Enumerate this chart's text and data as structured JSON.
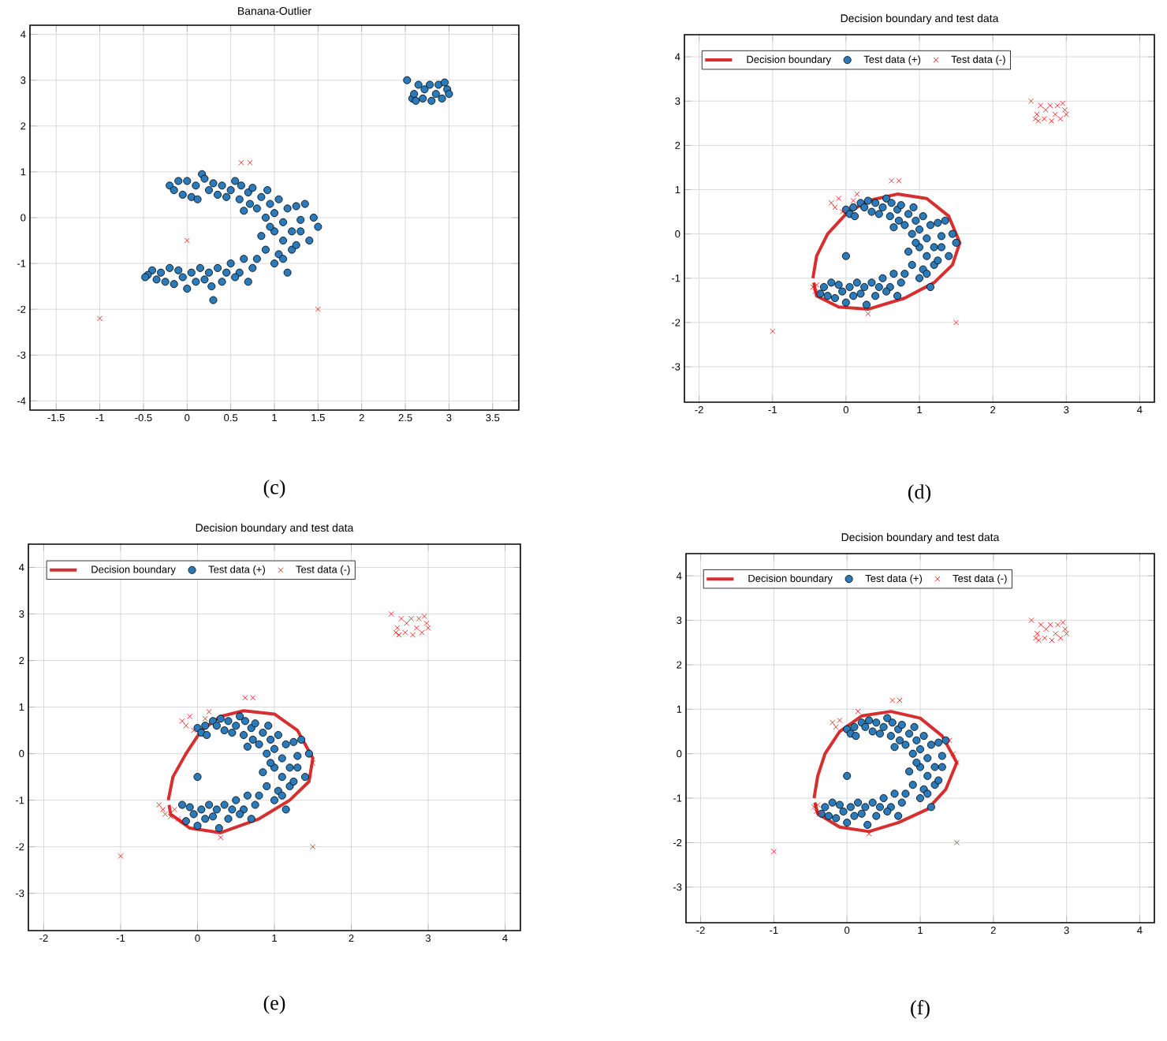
{
  "chart_data": [
    {
      "type": "scatter",
      "title": "Banana-Outlier",
      "annotations": [
        "(c)"
      ],
      "xlim": [
        -1.8,
        3.8
      ],
      "ylim": [
        -4.2,
        4.2
      ],
      "xticks": [
        -1.5,
        -1,
        -0.5,
        0,
        0.5,
        1,
        1.5,
        2,
        2.5,
        3,
        3.5
      ],
      "yticks": [
        -4,
        -3,
        -2,
        -1,
        0,
        1,
        2,
        3,
        4
      ],
      "grid": true,
      "legend": false,
      "series": [
        {
          "color": "#2b7bba",
          "marker": "circle",
          "x": [
            -0.2,
            -0.15,
            -0.1,
            -0.05,
            0,
            0.05,
            0.1,
            0.12,
            0.17,
            0.2,
            0.25,
            0.3,
            0.35,
            0.4,
            0.45,
            0.5,
            0.55,
            0.6,
            0.62,
            0.65,
            0.7,
            0.72,
            0.75,
            0.8,
            0.85,
            0.9,
            0.92,
            0.95,
            1.0,
            1.05,
            1.1,
            1.15,
            1.2,
            1.25,
            1.3,
            1.35,
            1.4,
            1.45,
            1.5,
            1.0,
            0.95,
            1.1,
            1.2,
            1.05,
            1.15,
            0.9,
            0.8,
            0.75,
            0.7,
            0.65,
            0.6,
            0.55,
            0.5,
            0.45,
            0.4,
            0.35,
            0.3,
            0.28,
            0.25,
            0.2,
            0.15,
            0.1,
            0.05,
            0,
            -0.05,
            -0.1,
            -0.15,
            -0.2,
            -0.25,
            -0.3,
            -0.35,
            -0.4,
            -0.45,
            -0.48,
            1.0,
            1.1,
            0.85,
            1.25,
            1.3,
            2.52,
            2.58,
            2.6,
            2.62,
            2.65,
            2.7,
            2.72,
            2.78,
            2.8,
            2.85,
            2.88,
            2.92,
            2.95,
            2.98,
            3.0
          ],
          "values": [
            0.7,
            0.6,
            0.8,
            0.5,
            0.8,
            0.45,
            0.7,
            0.4,
            0.95,
            0.85,
            0.6,
            0.75,
            0.5,
            0.7,
            0.45,
            0.6,
            0.8,
            0.4,
            0.7,
            0.15,
            0.55,
            0.3,
            0.65,
            0.2,
            0.45,
            0.0,
            0.6,
            0.3,
            0.1,
            0.4,
            -0.1,
            0.2,
            -0.3,
            0.25,
            -0.05,
            0.3,
            -0.5,
            0.0,
            -0.2,
            -0.3,
            -0.2,
            -0.5,
            -0.7,
            -0.8,
            -1.2,
            -0.7,
            -0.9,
            -1.1,
            -1.4,
            -0.9,
            -1.2,
            -1.3,
            -1.0,
            -1.2,
            -1.4,
            -1.1,
            -1.8,
            -1.5,
            -1.2,
            -1.35,
            -1.1,
            -1.4,
            -1.2,
            -1.55,
            -1.3,
            -1.15,
            -1.45,
            -1.1,
            -1.4,
            -1.2,
            -1.35,
            -1.15,
            -1.25,
            -1.3,
            -1.0,
            -0.9,
            -0.4,
            -0.6,
            -0.3,
            3.0,
            2.6,
            2.7,
            2.55,
            2.9,
            2.6,
            2.8,
            2.9,
            2.55,
            2.7,
            2.9,
            2.6,
            2.95,
            2.8,
            2.7
          ]
        },
        {
          "color": "#ff0000",
          "marker": "cross",
          "x": [
            0.62,
            0.72,
            0,
            -1,
            1.5
          ],
          "values": [
            1.2,
            1.2,
            -0.5,
            -2.2,
            -2
          ]
        }
      ]
    },
    {
      "type": "scatter",
      "title": "Decision boundary and test data",
      "annotations": [
        "(d)"
      ],
      "xlim": [
        -2.2,
        4.2
      ],
      "ylim": [
        -3.8,
        4.5
      ],
      "xticks": [
        -2,
        -1,
        0,
        1,
        2,
        3,
        4
      ],
      "yticks": [
        -3,
        -2,
        -1,
        0,
        1,
        2,
        3,
        4
      ],
      "grid": true,
      "legend": "top left",
      "series": [
        {
          "type": "line",
          "name": "Decision boundary",
          "color": "#d62f2f",
          "x": [
            -0.45,
            -0.4,
            -0.25,
            0,
            0.3,
            0.7,
            1.1,
            1.4,
            1.55,
            1.45,
            1.2,
            0.8,
            0.3,
            -0.1,
            -0.4,
            -0.44
          ],
          "values": [
            -1.0,
            -0.5,
            0,
            0.45,
            0.75,
            0.9,
            0.8,
            0.4,
            -0.2,
            -0.7,
            -1.1,
            -1.45,
            -1.7,
            -1.65,
            -1.4,
            -1.1
          ]
        },
        {
          "type": "scatter",
          "name": "Test data (+)",
          "color": "#2b7bba",
          "marker": "circle",
          "x": [
            0,
            0.05,
            0.1,
            0.12,
            0.2,
            0.25,
            0.3,
            0.35,
            0.4,
            0.45,
            0.5,
            0.55,
            0.6,
            0.62,
            0.65,
            0.7,
            0.72,
            0.75,
            0.8,
            0.85,
            0.9,
            0.92,
            0.95,
            1.0,
            1.05,
            1.1,
            1.15,
            1.2,
            1.25,
            1.3,
            1.35,
            1.4,
            1.45,
            1.5,
            1.0,
            0.95,
            1.1,
            1.2,
            1.05,
            1.15,
            0.9,
            0.8,
            0.75,
            0.7,
            0.65,
            0.6,
            0.55,
            0.5,
            0.45,
            0.4,
            0.35,
            0.28,
            0.25,
            0.2,
            0.15,
            0.1,
            0.05,
            0,
            -0.05,
            -0.1,
            -0.15,
            -0.2,
            -0.25,
            -0.3,
            -0.35,
            1.0,
            1.1,
            0.85,
            1.25,
            1.3,
            0
          ],
          "values": [
            0.55,
            0.45,
            0.6,
            0.4,
            0.7,
            0.6,
            0.75,
            0.5,
            0.7,
            0.45,
            0.6,
            0.8,
            0.4,
            0.7,
            0.15,
            0.55,
            0.3,
            0.65,
            0.2,
            0.45,
            0.0,
            0.6,
            0.3,
            0.1,
            0.4,
            -0.1,
            0.2,
            -0.3,
            0.25,
            -0.05,
            0.3,
            -0.5,
            0.0,
            -0.2,
            -0.3,
            -0.2,
            -0.5,
            -0.7,
            -0.8,
            -1.2,
            -0.7,
            -0.9,
            -1.1,
            -1.4,
            -0.9,
            -1.2,
            -1.3,
            -1.0,
            -1.2,
            -1.4,
            -1.1,
            -1.6,
            -1.2,
            -1.35,
            -1.1,
            -1.4,
            -1.2,
            -1.55,
            -1.3,
            -1.15,
            -1.45,
            -1.1,
            -1.4,
            -1.2,
            -1.35,
            -1.0,
            -0.9,
            -0.4,
            -0.6,
            -0.3,
            -0.5
          ]
        },
        {
          "type": "scatter",
          "name": "Test data (-)",
          "color": "#ff0000",
          "marker": "cross",
          "x": [
            0.62,
            0.72,
            -1,
            1.5,
            0.3,
            -0.2,
            -0.15,
            -0.1,
            -0.05,
            0.1,
            0.15,
            -0.45,
            -0.42,
            -0.4,
            -0.38,
            2.52,
            2.58,
            2.6,
            2.62,
            2.65,
            2.7,
            2.72,
            2.78,
            2.8,
            2.85,
            2.88,
            2.92,
            2.95,
            2.98,
            3.0
          ],
          "values": [
            1.2,
            1.2,
            -2.2,
            -2,
            -1.8,
            0.7,
            0.6,
            0.8,
            0.5,
            0.75,
            0.9,
            -1.2,
            -1.3,
            -1.15,
            -1.35,
            3.0,
            2.6,
            2.7,
            2.55,
            2.9,
            2.6,
            2.8,
            2.9,
            2.55,
            2.7,
            2.9,
            2.6,
            2.95,
            2.8,
            2.7
          ]
        }
      ]
    },
    {
      "type": "scatter",
      "title": "Decision boundary and test data",
      "annotations": [
        "(e)"
      ],
      "xlim": [
        -2.2,
        4.2
      ],
      "ylim": [
        -3.8,
        4.5
      ],
      "xticks": [
        -2,
        -1,
        0,
        1,
        2,
        3,
        4
      ],
      "yticks": [
        -3,
        -2,
        -1,
        0,
        1,
        2,
        3,
        4
      ],
      "grid": true,
      "legend": "top left",
      "series": [
        {
          "type": "line",
          "name": "Decision boundary",
          "color": "#d62f2f",
          "x": [
            -0.38,
            -0.32,
            -0.15,
            0.05,
            0.3,
            0.6,
            1.0,
            1.3,
            1.5,
            1.45,
            1.2,
            0.8,
            0.3,
            -0.1,
            -0.35,
            -0.37
          ],
          "values": [
            -1.0,
            -0.5,
            0,
            0.5,
            0.8,
            0.92,
            0.85,
            0.5,
            -0.1,
            -0.6,
            -1.0,
            -1.4,
            -1.7,
            -1.6,
            -1.3,
            -1.1
          ]
        },
        {
          "type": "scatter",
          "name": "Test data (+)",
          "color": "#2b7bba",
          "marker": "circle",
          "x": [
            0,
            0.05,
            0.1,
            0.12,
            0.2,
            0.25,
            0.3,
            0.35,
            0.4,
            0.45,
            0.5,
            0.55,
            0.6,
            0.62,
            0.65,
            0.7,
            0.72,
            0.75,
            0.8,
            0.85,
            0.9,
            0.92,
            0.95,
            1.0,
            1.05,
            1.1,
            1.15,
            1.2,
            1.25,
            1.3,
            1.35,
            1.4,
            1.45,
            1.0,
            0.95,
            1.1,
            1.2,
            1.05,
            1.15,
            0.9,
            0.8,
            0.75,
            0.7,
            0.65,
            0.6,
            0.55,
            0.5,
            0.45,
            0.4,
            0.35,
            0.28,
            0.25,
            0.2,
            0.15,
            0.1,
            0.05,
            0,
            -0.05,
            -0.1,
            -0.15,
            -0.2,
            1.0,
            1.1,
            0.85,
            1.25,
            1.3,
            0
          ],
          "values": [
            0.55,
            0.45,
            0.6,
            0.4,
            0.7,
            0.6,
            0.75,
            0.5,
            0.7,
            0.45,
            0.6,
            0.8,
            0.4,
            0.7,
            0.15,
            0.55,
            0.3,
            0.65,
            0.2,
            0.45,
            0.0,
            0.6,
            0.3,
            0.1,
            0.4,
            -0.1,
            0.2,
            -0.3,
            0.25,
            -0.05,
            0.3,
            -0.5,
            0.0,
            -0.3,
            -0.2,
            -0.5,
            -0.7,
            -0.8,
            -1.2,
            -0.7,
            -0.9,
            -1.1,
            -1.4,
            -0.9,
            -1.2,
            -1.3,
            -1.0,
            -1.2,
            -1.4,
            -1.1,
            -1.6,
            -1.2,
            -1.35,
            -1.1,
            -1.4,
            -1.2,
            -1.55,
            -1.3,
            -1.15,
            -1.45,
            -1.1,
            -1.0,
            -0.9,
            -0.4,
            -0.6,
            -0.3,
            -0.5
          ]
        },
        {
          "type": "scatter",
          "name": "Test data (-)",
          "color": "#ff0000",
          "marker": "cross",
          "x": [
            0.62,
            0.72,
            -1,
            1.5,
            1.5,
            0.3,
            -0.2,
            -0.15,
            -0.1,
            -0.05,
            0.1,
            0.15,
            -0.45,
            -0.42,
            -0.5,
            -0.35,
            -0.3,
            -0.25,
            -0.2,
            2.52,
            2.58,
            2.6,
            2.62,
            2.65,
            2.7,
            2.72,
            2.78,
            2.8,
            2.85,
            2.88,
            2.92,
            2.95,
            2.98,
            3.0
          ],
          "values": [
            1.2,
            1.2,
            -2.2,
            -2,
            -0.2,
            -1.8,
            0.7,
            0.6,
            0.8,
            0.5,
            0.75,
            0.9,
            -1.2,
            -1.3,
            -1.1,
            -1.35,
            -1.2,
            -1.4,
            -1.45,
            3.0,
            2.6,
            2.7,
            2.55,
            2.9,
            2.6,
            2.8,
            2.9,
            2.55,
            2.7,
            2.9,
            2.6,
            2.95,
            2.8,
            2.7
          ]
        }
      ]
    },
    {
      "type": "scatter",
      "title": "Decision boundary and test data",
      "annotations": [
        "(f)"
      ],
      "xlim": [
        -2.2,
        4.2
      ],
      "ylim": [
        -3.8,
        4.5
      ],
      "xticks": [
        -2,
        -1,
        0,
        1,
        2,
        3,
        4
      ],
      "yticks": [
        -3,
        -2,
        -1,
        0,
        1,
        2,
        3,
        4
      ],
      "grid": true,
      "legend": "top left",
      "series": [
        {
          "type": "line",
          "name": "Decision boundary",
          "color": "#d62f2f",
          "x": [
            -0.45,
            -0.4,
            -0.3,
            -0.1,
            0.2,
            0.6,
            1.0,
            1.3,
            1.5,
            1.35,
            1.1,
            0.7,
            0.3,
            -0.1,
            -0.4,
            -0.44
          ],
          "values": [
            -1.0,
            -0.5,
            0,
            0.5,
            0.85,
            0.95,
            0.8,
            0.4,
            -0.2,
            -0.8,
            -1.25,
            -1.55,
            -1.75,
            -1.65,
            -1.35,
            -1.1
          ]
        },
        {
          "type": "scatter",
          "name": "Test data (+)",
          "color": "#2b7bba",
          "marker": "circle",
          "x": [
            0,
            0.05,
            0.1,
            0.12,
            0.2,
            0.25,
            0.3,
            0.35,
            0.4,
            0.45,
            0.5,
            0.55,
            0.6,
            0.62,
            0.65,
            0.7,
            0.72,
            0.75,
            0.8,
            0.85,
            0.9,
            0.92,
            0.95,
            1.0,
            1.05,
            1.1,
            1.15,
            1.2,
            1.25,
            1.3,
            1.35,
            1.0,
            0.95,
            1.1,
            1.2,
            1.05,
            1.15,
            0.9,
            0.8,
            0.75,
            0.7,
            0.65,
            0.6,
            0.55,
            0.5,
            0.45,
            0.4,
            0.35,
            0.28,
            0.25,
            0.2,
            0.15,
            0.1,
            0.05,
            0,
            -0.05,
            -0.1,
            -0.15,
            -0.2,
            -0.25,
            -0.3,
            -0.35,
            1.0,
            1.1,
            0.85,
            1.25,
            1.3,
            0
          ],
          "values": [
            0.55,
            0.45,
            0.6,
            0.4,
            0.7,
            0.6,
            0.75,
            0.5,
            0.7,
            0.45,
            0.6,
            0.8,
            0.4,
            0.7,
            0.15,
            0.55,
            0.3,
            0.65,
            0.2,
            0.45,
            0.0,
            0.6,
            0.3,
            0.1,
            0.4,
            -0.1,
            0.2,
            -0.3,
            0.25,
            -0.05,
            0.3,
            -0.3,
            -0.2,
            -0.5,
            -0.7,
            -0.8,
            -1.2,
            -0.7,
            -0.9,
            -1.1,
            -1.4,
            -0.9,
            -1.2,
            -1.3,
            -1.0,
            -1.2,
            -1.4,
            -1.1,
            -1.6,
            -1.2,
            -1.35,
            -1.1,
            -1.4,
            -1.2,
            -1.55,
            -1.3,
            -1.15,
            -1.45,
            -1.1,
            -1.4,
            -1.2,
            -1.35,
            -1.0,
            -0.9,
            -0.4,
            -0.6,
            -0.3,
            -0.5
          ]
        },
        {
          "type": "scatter",
          "name": "Test data (-)",
          "color": "#ff0000",
          "marker": "cross",
          "x": [
            0.62,
            0.72,
            -1,
            1.5,
            0.3,
            -0.2,
            -0.15,
            -0.1,
            0.15,
            1.4,
            1.45,
            1.5,
            -0.45,
            -0.42,
            -0.4,
            -0.38,
            2.52,
            2.58,
            2.6,
            2.62,
            2.65,
            2.7,
            2.72,
            2.78,
            2.8,
            2.85,
            2.88,
            2.92,
            2.95,
            2.98,
            3.0
          ],
          "values": [
            1.2,
            1.2,
            -2.2,
            -2,
            -1.8,
            0.7,
            0.6,
            0.75,
            0.95,
            0.3,
            0.0,
            -0.2,
            -1.2,
            -1.3,
            -1.15,
            -1.35,
            3.0,
            2.6,
            2.7,
            2.55,
            2.9,
            2.6,
            2.8,
            2.9,
            2.55,
            2.7,
            2.9,
            2.6,
            2.95,
            2.8,
            2.7
          ]
        }
      ]
    }
  ]
}
